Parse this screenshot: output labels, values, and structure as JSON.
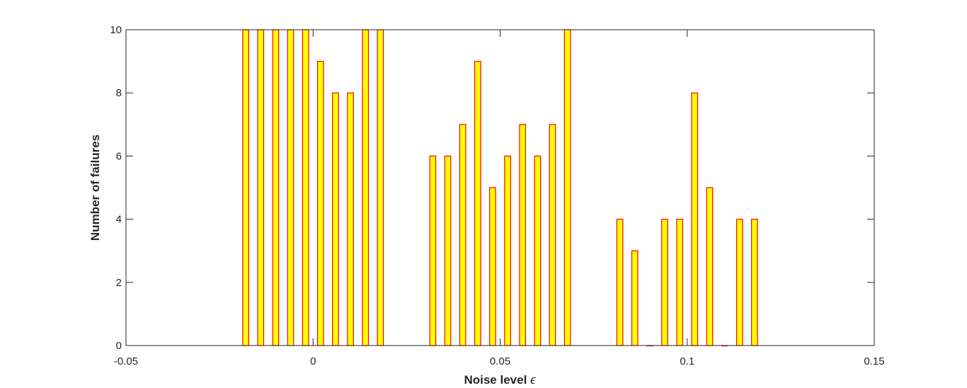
{
  "chart_data": {
    "type": "bar",
    "xlabel": "Noise level",
    "xlabel_symbol": "ϵ",
    "ylabel": "Number of failures",
    "xlim": [
      -0.05,
      0.15
    ],
    "ylim": [
      0,
      10
    ],
    "xticks": [
      -0.05,
      0,
      0.05,
      0.1,
      0.15
    ],
    "xtick_labels": [
      "-0.05",
      "0",
      "0.05",
      "0.1",
      "0.15"
    ],
    "yticks": [
      0,
      2,
      4,
      6,
      8,
      10
    ],
    "ytick_labels": [
      "0",
      "2",
      "4",
      "6",
      "8",
      "10"
    ],
    "grid": false,
    "bar_width": 0.0016,
    "bar_fill_color": "#ffff00",
    "bar_edge_color": "#ff0000",
    "groups": [
      {
        "x": [
          -0.018,
          -0.014,
          -0.01,
          -0.006,
          -0.002,
          0.002,
          0.006,
          0.01,
          0.014,
          0.018
        ],
        "values": [
          10,
          10,
          10,
          10,
          10,
          9,
          8,
          8,
          10,
          10
        ]
      },
      {
        "x": [
          0.032,
          0.036,
          0.04,
          0.044,
          0.048,
          0.052,
          0.056,
          0.06,
          0.064,
          0.068
        ],
        "values": [
          6,
          6,
          7,
          9,
          5,
          6,
          7,
          6,
          7,
          10
        ]
      },
      {
        "x": [
          0.082,
          0.086,
          0.09,
          0.094,
          0.098,
          0.102,
          0.106,
          0.11,
          0.114,
          0.118
        ],
        "values": [
          4,
          3,
          0,
          4,
          4,
          8,
          5,
          0,
          4,
          4
        ]
      }
    ]
  }
}
